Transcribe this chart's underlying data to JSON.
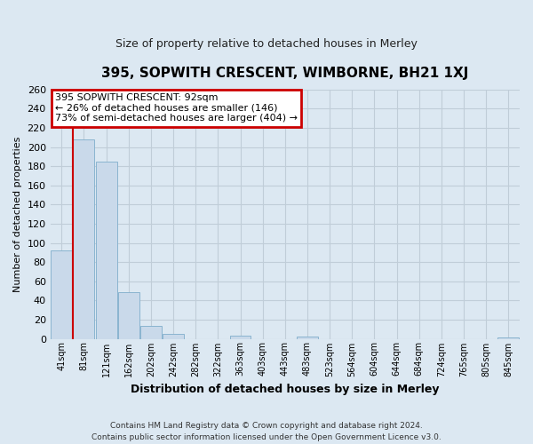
{
  "title": "395, SOPWITH CRESCENT, WIMBORNE, BH21 1XJ",
  "subtitle": "Size of property relative to detached houses in Merley",
  "xlabel": "Distribution of detached houses by size in Merley",
  "ylabel": "Number of detached properties",
  "bins": [
    "41sqm",
    "81sqm",
    "121sqm",
    "162sqm",
    "202sqm",
    "242sqm",
    "282sqm",
    "322sqm",
    "363sqm",
    "403sqm",
    "443sqm",
    "483sqm",
    "523sqm",
    "564sqm",
    "604sqm",
    "644sqm",
    "684sqm",
    "724sqm",
    "765sqm",
    "805sqm",
    "845sqm"
  ],
  "values": [
    92,
    208,
    185,
    49,
    13,
    5,
    0,
    0,
    3,
    0,
    0,
    2,
    0,
    0,
    0,
    0,
    0,
    0,
    0,
    0,
    1
  ],
  "bar_color": "#c9d9ea",
  "bar_edge_color": "#8ab4d0",
  "annotation_line1": "395 SOPWITH CRESCENT: 92sqm",
  "annotation_line2": "← 26% of detached houses are smaller (146)",
  "annotation_line3": "73% of semi-detached houses are larger (404) →",
  "annotation_box_color": "#ffffff",
  "annotation_box_edge_color": "#cc0000",
  "vline_color": "#cc0000",
  "grid_color": "#c0cdd8",
  "background_color": "#dce8f2",
  "footer_line1": "Contains HM Land Registry data © Crown copyright and database right 2024.",
  "footer_line2": "Contains public sector information licensed under the Open Government Licence v3.0.",
  "ylim": [
    0,
    260
  ],
  "yticks": [
    0,
    20,
    40,
    60,
    80,
    100,
    120,
    140,
    160,
    180,
    200,
    220,
    240,
    260
  ],
  "vline_x": 0.5
}
